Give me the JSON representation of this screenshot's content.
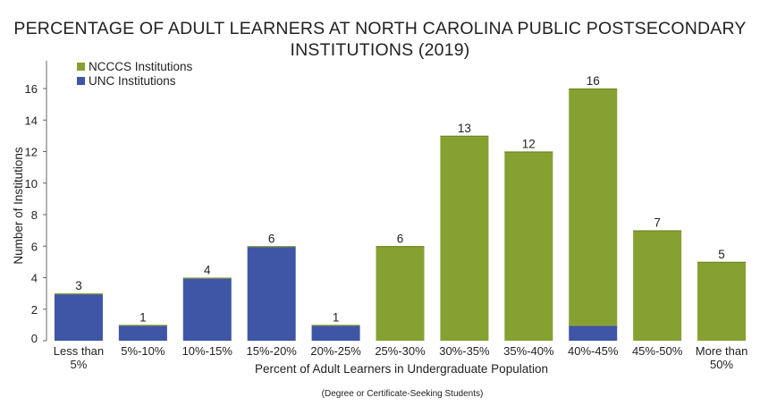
{
  "chart_data": {
    "type": "bar",
    "stacked": true,
    "title_line1": "PERCENTAGE OF ADULT LEARNERS AT NORTH CAROLINA PUBLIC POSTSECONDARY",
    "title_line2": "INSTITUTIONS (2019)",
    "xlabel": "Percent of Adult Learners in Undergraduate Population",
    "ylabel": "Number of Institutions",
    "note": "(Degree or Certificate-Seeking Students)",
    "categories": [
      [
        "Less than",
        "5%"
      ],
      [
        "5%-10%"
      ],
      [
        "10%-15%"
      ],
      [
        "15%-20%"
      ],
      [
        "20%-25%"
      ],
      [
        "25%-30%"
      ],
      [
        "30%-35%"
      ],
      [
        "35%-40%"
      ],
      [
        "40%-45%"
      ],
      [
        "45%-50%"
      ],
      [
        "More than",
        "50%"
      ]
    ],
    "series": [
      {
        "name": "UNC Institutions",
        "color": "#3f55a6",
        "values": [
          3,
          1,
          4,
          6,
          1,
          0,
          0,
          0,
          1,
          0,
          0
        ]
      },
      {
        "name": "NCCCS Institutions",
        "color": "#86a032",
        "values": [
          0,
          0,
          0,
          0,
          0,
          6,
          13,
          12,
          15,
          7,
          5
        ]
      }
    ],
    "totals": [
      3,
      1,
      4,
      6,
      1,
      6,
      13,
      12,
      16,
      7,
      5
    ],
    "legend_order": [
      "NCCCS Institutions",
      "UNC Institutions"
    ],
    "legend_position": "top-left",
    "yticks": [
      0,
      2,
      4,
      6,
      8,
      10,
      12,
      14,
      16
    ],
    "ylim": [
      0,
      17.5
    ],
    "grid": false
  }
}
